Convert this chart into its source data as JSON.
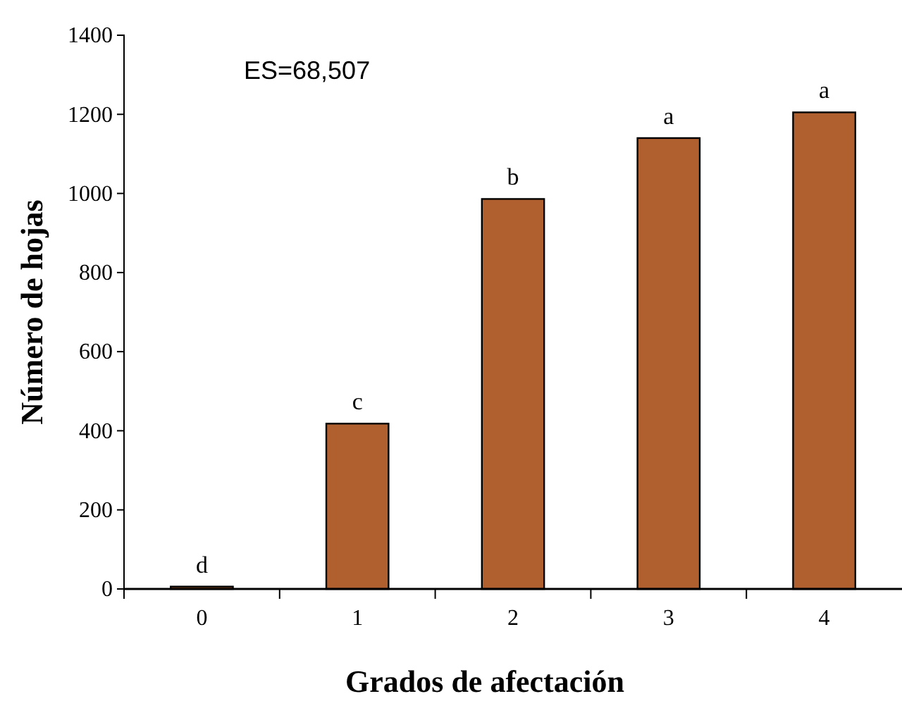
{
  "chart_data": {
    "type": "bar",
    "xlabel": "Grados de afectación",
    "ylabel": "Número de hojas",
    "categories": [
      "0",
      "1",
      "2",
      "3",
      "4"
    ],
    "values": [
      6,
      418,
      986,
      1140,
      1205
    ],
    "color": "#b0602e",
    "ylim": [
      0,
      1400
    ],
    "yticks": [
      0,
      200,
      400,
      600,
      800,
      1000,
      1200,
      1400
    ],
    "annotations": [
      "ES=68,507",
      {
        "text": "d",
        "x": "0",
        "y": 6
      },
      {
        "text": "c",
        "x": "1",
        "y": 418
      },
      {
        "text": "b",
        "x": "2",
        "y": 986
      },
      {
        "text": "a",
        "x": "3",
        "y": 1140
      },
      {
        "text": "a",
        "x": "4",
        "y": 1205
      }
    ]
  }
}
